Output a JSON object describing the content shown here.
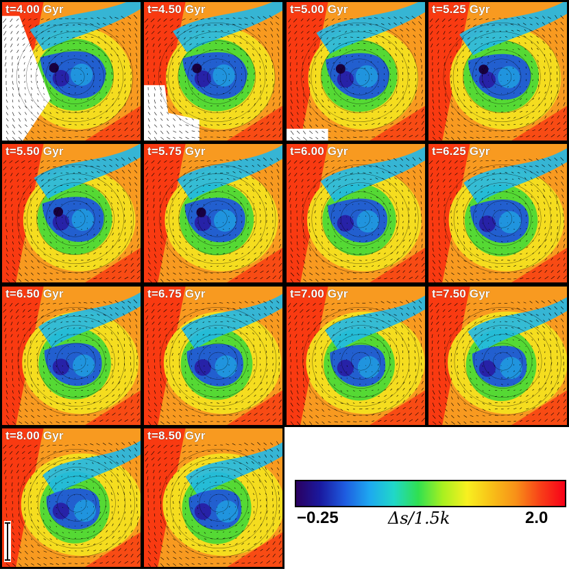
{
  "panels": [
    {
      "label": "t=4.00 Gyr"
    },
    {
      "label": "t=4.50 Gyr"
    },
    {
      "label": "t=5.00 Gyr"
    },
    {
      "label": "t=5.25 Gyr"
    },
    {
      "label": "t=5.50 Gyr"
    },
    {
      "label": "t=5.75 Gyr"
    },
    {
      "label": "t=6.00 Gyr"
    },
    {
      "label": "t=6.25 Gyr"
    },
    {
      "label": "t=6.50 Gyr"
    },
    {
      "label": "t=6.75 Gyr"
    },
    {
      "label": "t=7.00 Gyr"
    },
    {
      "label": "t=7.50 Gyr"
    },
    {
      "label": "t=8.00 Gyr"
    },
    {
      "label": "t=8.50 Gyr"
    }
  ],
  "colorbar": {
    "min_label": "−0.25",
    "max_label": "2.0",
    "quantity_label": "Δs/1.5k",
    "colors": [
      "#2a0060",
      "#1a1aa0",
      "#1e5ce0",
      "#1ea8f0",
      "#20d8c8",
      "#30e050",
      "#a8f020",
      "#f8f020",
      "#f8c018",
      "#f89018",
      "#f84018",
      "#f80018"
    ]
  },
  "palette": {
    "hot": "#f83010",
    "warm": "#f89a20",
    "yellow": "#f4e020",
    "green": "#38d838",
    "cyan": "#20b8e8",
    "blue": "#2058d8",
    "deep": "#2818a0",
    "core": "#180040"
  }
}
